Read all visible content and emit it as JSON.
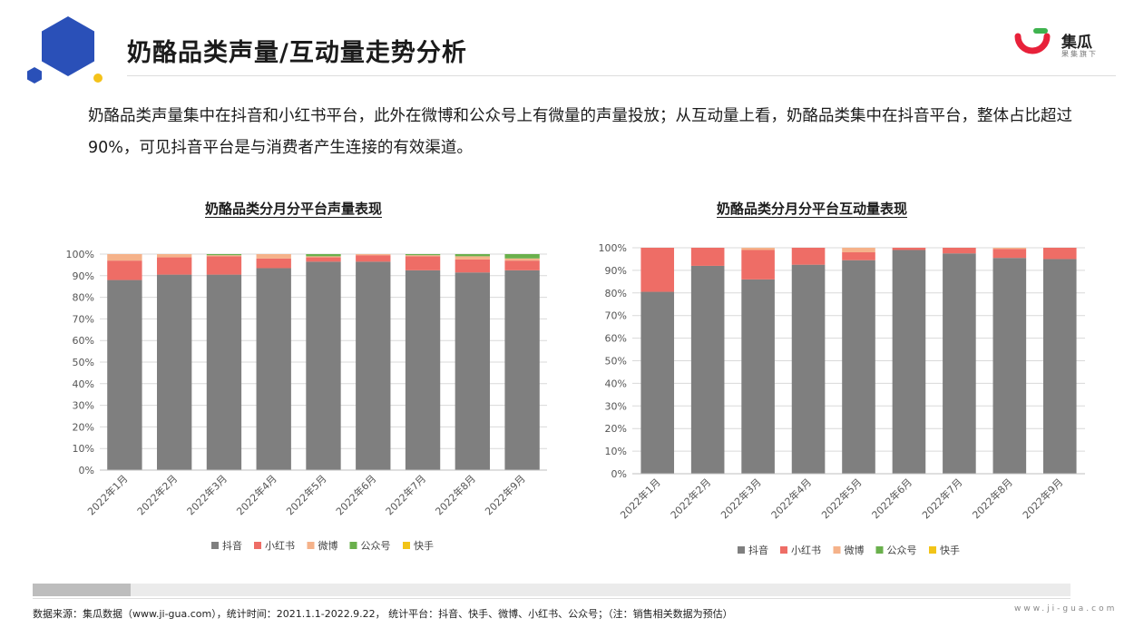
{
  "header": {
    "title": "奶酪品类声量/互动量走势分析",
    "logo_text": "集瓜",
    "logo_sub": "果集旗下",
    "brand_colors": {
      "blue": "#2a50b8",
      "yellow": "#f4c21a",
      "logo_red": "#e8213a",
      "logo_green": "#3fb34f"
    }
  },
  "intro": "奶酪品类声量集中在抖音和小红书平台，此外在微博和公众号上有微量的声量投放；从互动量上看，奶酪品类集中在抖音平台，整体占比超过90%，可见抖音平台是与消费者产生连接的有效渠道。",
  "chart_data": [
    {
      "type": "bar",
      "stacked": true,
      "title": "奶酪品类分月分平台声量表现",
      "categories": [
        "2022年1月",
        "2022年2月",
        "2022年3月",
        "2022年4月",
        "2022年5月",
        "2022年6月",
        "2022年7月",
        "2022年8月",
        "2022年9月"
      ],
      "ylim": [
        0,
        100
      ],
      "yticks": [
        "0%",
        "10%",
        "20%",
        "30%",
        "40%",
        "50%",
        "60%",
        "70%",
        "80%",
        "90%",
        "100%"
      ],
      "grid": true,
      "legend_position": "bottom",
      "series": [
        {
          "name": "抖音",
          "color": "#7f7f7f",
          "values": [
            88,
            90.5,
            90.5,
            93.5,
            96.5,
            96.5,
            92.5,
            91.5,
            92.5
          ]
        },
        {
          "name": "小红书",
          "color": "#ee6d66",
          "values": [
            9,
            8,
            8.5,
            4.5,
            2,
            3,
            6.5,
            6,
            4.5
          ]
        },
        {
          "name": "微博",
          "color": "#f5b28a",
          "values": [
            3,
            1.5,
            0.5,
            2,
            0.5,
            0.5,
            0.5,
            1.5,
            1
          ]
        },
        {
          "name": "公众号",
          "color": "#6ab04c",
          "values": [
            0,
            0,
            0.5,
            0,
            1,
            0,
            0.5,
            1,
            2
          ]
        },
        {
          "name": "快手",
          "color": "#f2c418",
          "values": [
            0,
            0,
            0,
            0,
            0,
            0,
            0,
            0,
            0
          ]
        }
      ]
    },
    {
      "type": "bar",
      "stacked": true,
      "title": "奶酪品类分月分平台互动量表现",
      "categories": [
        "2022年1月",
        "2022年2月",
        "2022年3月",
        "2022年4月",
        "2022年5月",
        "2022年6月",
        "2022年7月",
        "2022年8月",
        "2022年9月"
      ],
      "ylim": [
        0,
        100
      ],
      "yticks": [
        "0%",
        "10%",
        "20%",
        "30%",
        "40%",
        "50%",
        "60%",
        "70%",
        "80%",
        "90%",
        "100%"
      ],
      "grid": true,
      "legend_position": "bottom",
      "series": [
        {
          "name": "抖音",
          "color": "#7f7f7f",
          "values": [
            80.5,
            92,
            86,
            92.5,
            94.5,
            99,
            97.5,
            95.5,
            95
          ]
        },
        {
          "name": "小红书",
          "color": "#ee6d66",
          "values": [
            19.5,
            8,
            13,
            7.5,
            3.5,
            1,
            2.5,
            4,
            5
          ]
        },
        {
          "name": "微博",
          "color": "#f5b28a",
          "values": [
            0,
            0,
            1,
            0,
            2,
            0,
            0,
            0.5,
            0
          ]
        },
        {
          "name": "公众号",
          "color": "#6ab04c",
          "values": [
            0,
            0,
            0,
            0,
            0,
            0,
            0,
            0,
            0
          ]
        },
        {
          "name": "快手",
          "color": "#f2c418",
          "values": [
            0,
            0,
            0,
            0,
            0,
            0,
            0,
            0,
            0
          ]
        }
      ]
    }
  ],
  "footer": {
    "source": "数据来源：集瓜数据（www.ji-gua.com），统计时间：2021.1.1-2022.9.22， 统计平台：抖音、快手、微博、小红书、公众号；（注：销售相关数据为预估）",
    "url": "www.ji-gua.com",
    "progress": 0.094
  }
}
